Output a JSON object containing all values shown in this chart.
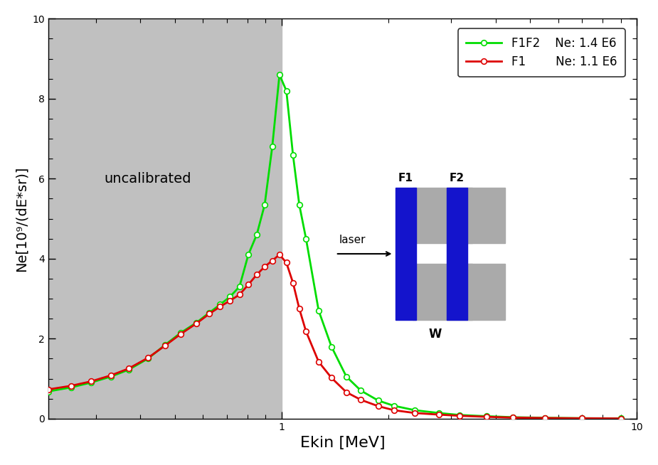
{
  "xlabel": "Ekin [MeV]",
  "ylabel": "Ne[10⁹/(dE*sr)]",
  "xlim_log": [
    0.22,
    10
  ],
  "ylim": [
    0,
    10
  ],
  "uncalibrated_xmax": 1.0,
  "green_color": "#00dd00",
  "red_color": "#dd0000",
  "gray_bg": "#c0c0c0",
  "inset_gray": "#aaaaaa",
  "inset_blue": "#1414cc",
  "f1f2_x": [
    0.22,
    0.255,
    0.29,
    0.33,
    0.37,
    0.42,
    0.47,
    0.52,
    0.575,
    0.625,
    0.67,
    0.715,
    0.76,
    0.805,
    0.85,
    0.895,
    0.94,
    0.985,
    1.03,
    1.075,
    1.12,
    1.17,
    1.27,
    1.38,
    1.52,
    1.67,
    1.87,
    2.07,
    2.37,
    2.77,
    3.17,
    3.77,
    4.47,
    5.5,
    7.0,
    9.0
  ],
  "f1f2_y": [
    0.68,
    0.78,
    0.9,
    1.05,
    1.22,
    1.5,
    1.85,
    2.15,
    2.4,
    2.65,
    2.85,
    3.05,
    3.3,
    4.1,
    4.6,
    5.35,
    6.8,
    8.6,
    8.2,
    6.6,
    5.35,
    4.5,
    2.7,
    1.8,
    1.05,
    0.7,
    0.45,
    0.32,
    0.21,
    0.14,
    0.09,
    0.06,
    0.035,
    0.02,
    0.01,
    0.005
  ],
  "f1_x": [
    0.22,
    0.255,
    0.29,
    0.33,
    0.37,
    0.42,
    0.47,
    0.52,
    0.575,
    0.625,
    0.67,
    0.715,
    0.76,
    0.805,
    0.85,
    0.895,
    0.94,
    0.985,
    1.03,
    1.075,
    1.12,
    1.17,
    1.27,
    1.38,
    1.52,
    1.67,
    1.87,
    2.07,
    2.37,
    2.77,
    3.17,
    3.77,
    4.47,
    5.5,
    7.0,
    9.0
  ],
  "f1_y": [
    0.73,
    0.82,
    0.93,
    1.08,
    1.25,
    1.52,
    1.83,
    2.12,
    2.38,
    2.62,
    2.8,
    2.95,
    3.1,
    3.35,
    3.6,
    3.8,
    3.95,
    4.1,
    3.9,
    3.4,
    2.75,
    2.18,
    1.42,
    1.02,
    0.66,
    0.47,
    0.31,
    0.21,
    0.14,
    0.1,
    0.07,
    0.045,
    0.025,
    0.015,
    0.008,
    0.003
  ]
}
